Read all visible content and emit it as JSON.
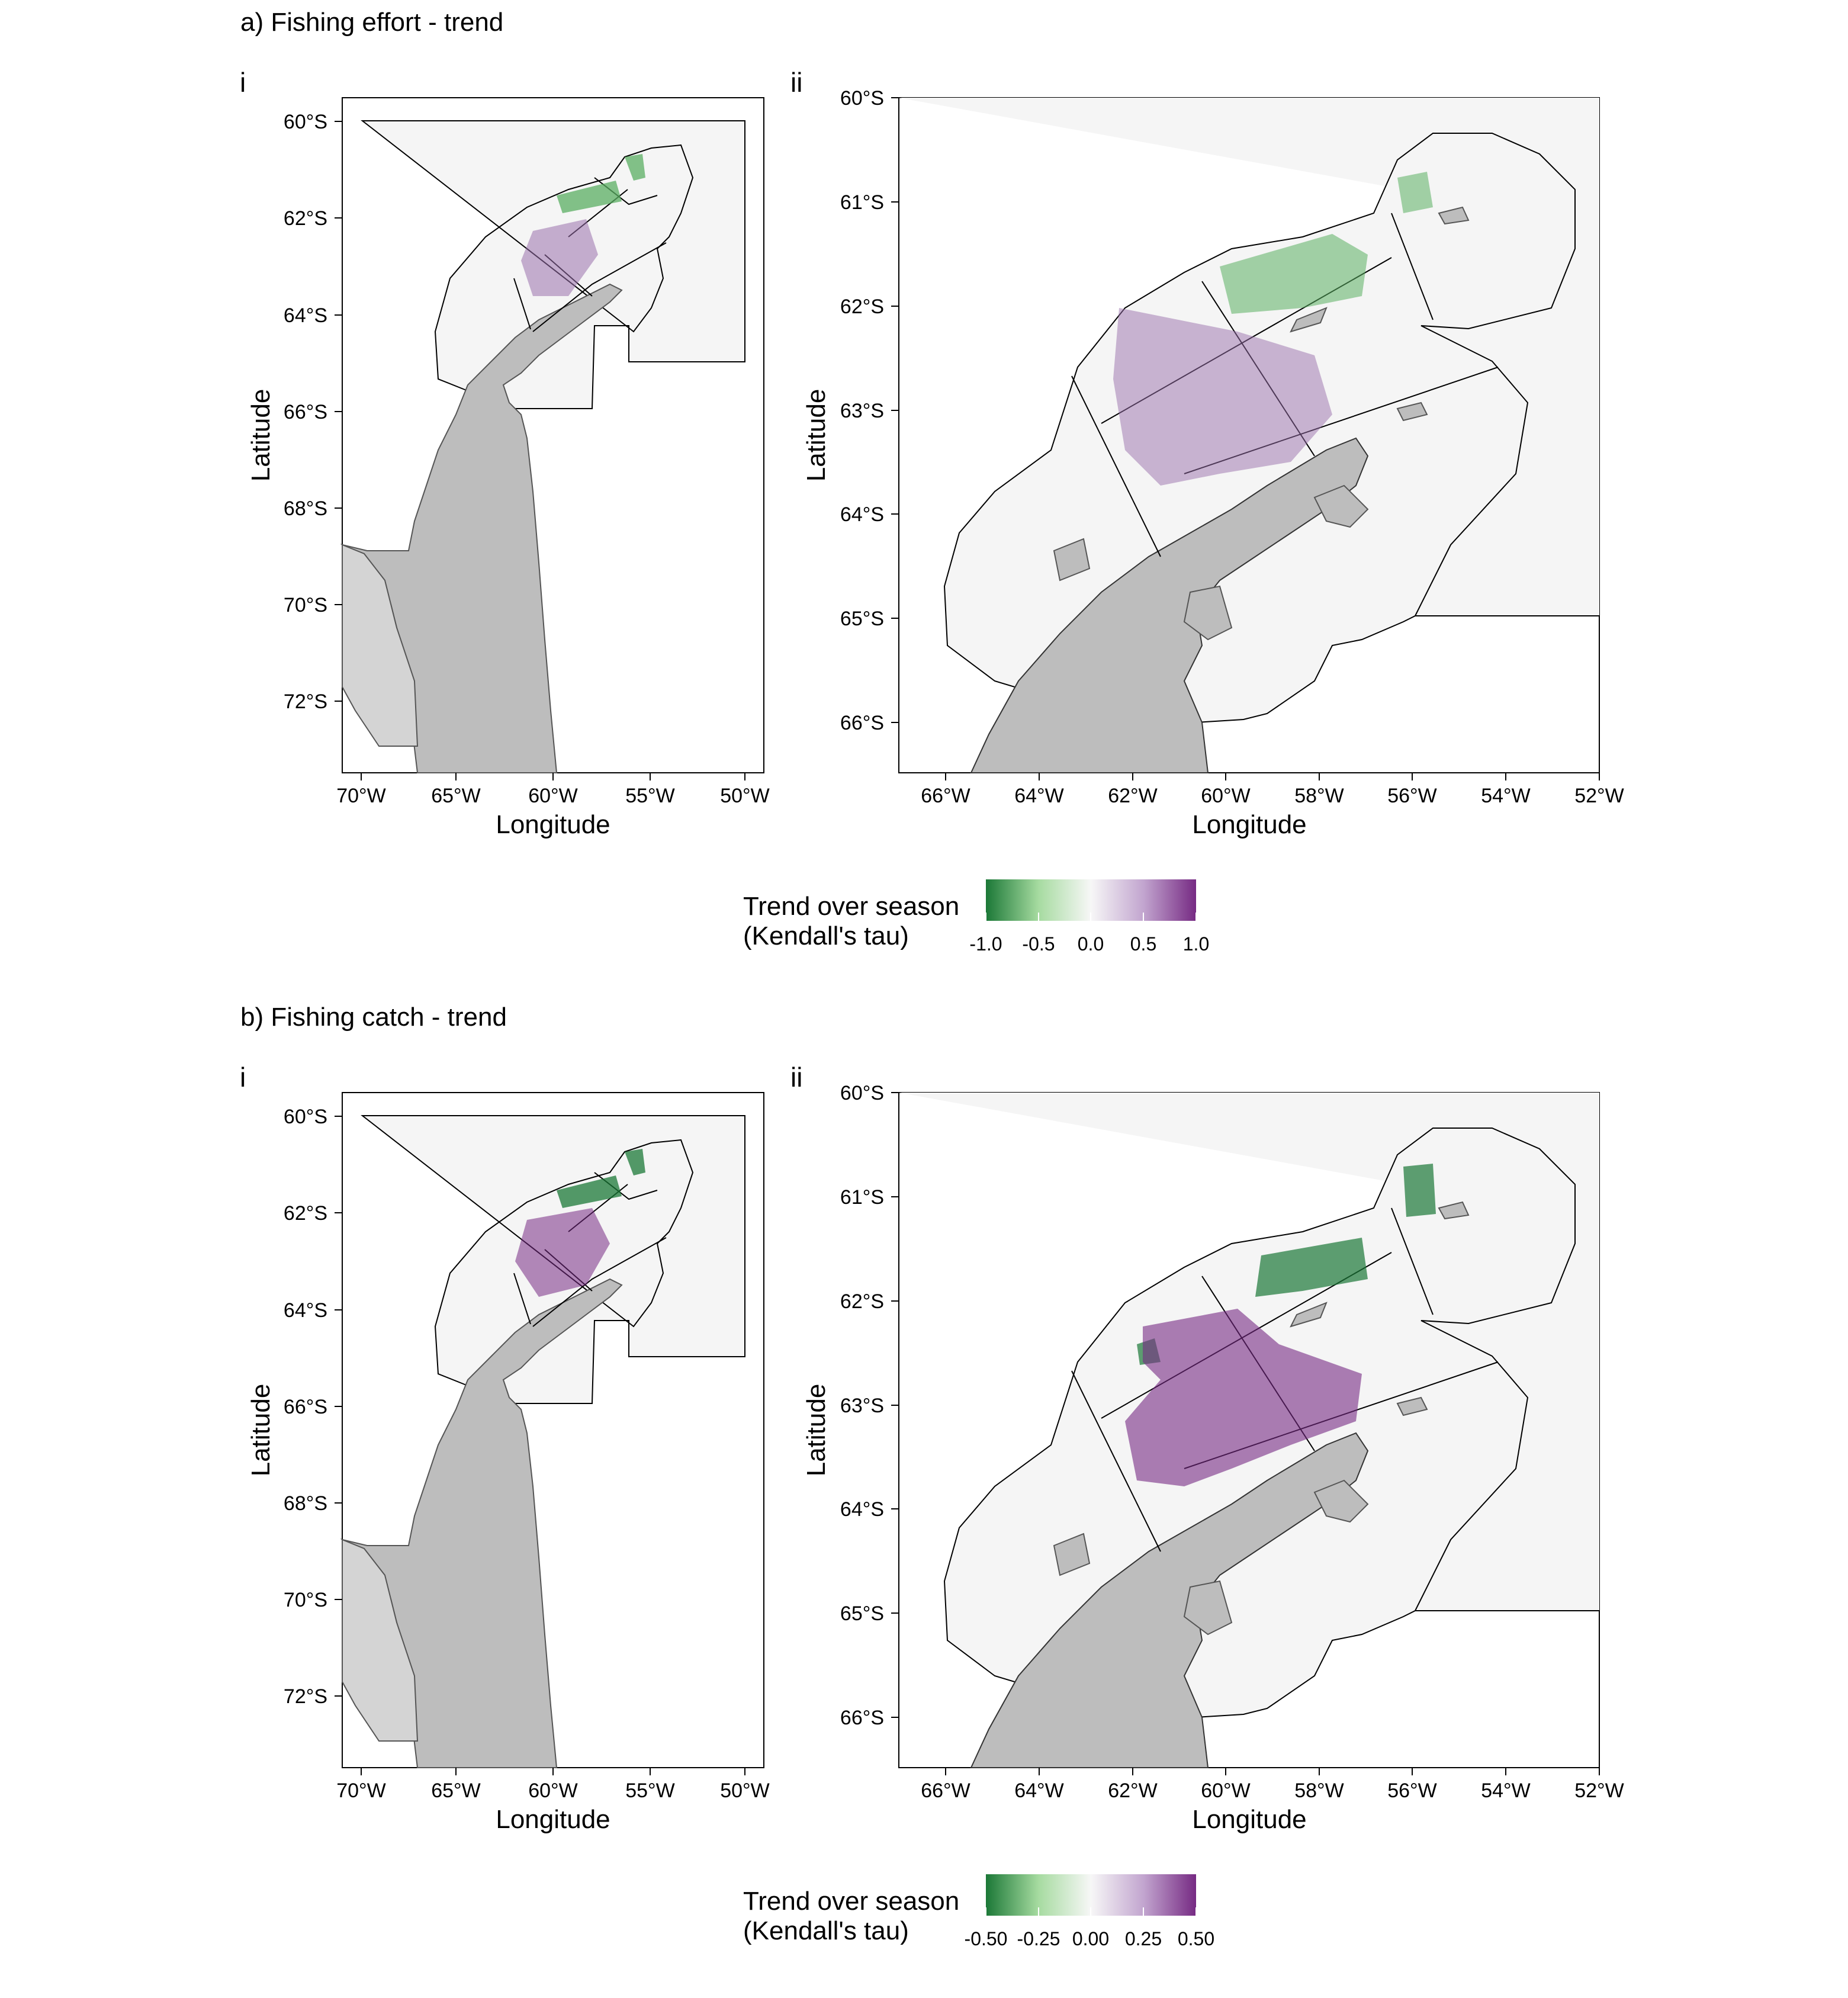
{
  "figure": {
    "panels": [
      {
        "id": "a",
        "title": "a) Fishing effort - trend",
        "legend": {
          "title_line1": "Trend over season",
          "title_line2": "(Kendall's tau)",
          "ticks": [
            "-1.0",
            "-0.5",
            "0.0",
            "0.5",
            "1.0"
          ],
          "range": [
            -1.0,
            1.0
          ]
        },
        "maps": [
          {
            "label": "i",
            "ylabel": "Latitude",
            "xlabel": "Longitude",
            "xlim": [
              -72,
              -49
            ],
            "ylim": [
              -73.5,
              -59.5
            ],
            "xticks": [
              "70°W",
              "65°W",
              "60°W",
              "55°W",
              "50°W"
            ],
            "yticks": [
              "60°S",
              "62°S",
              "64°S",
              "66°S",
              "68°S",
              "70°S",
              "72°S"
            ]
          },
          {
            "label": "ii",
            "ylabel": "Latitude",
            "xlabel": "Longitude",
            "xlim": [
              -67,
              -52
            ],
            "ylim": [
              -66.5,
              -60
            ],
            "xticks": [
              "66°W",
              "64°W",
              "62°W",
              "60°W",
              "58°W",
              "56°W",
              "54°W",
              "52°W"
            ],
            "yticks": [
              "60°S",
              "61°S",
              "62°S",
              "63°S",
              "64°S",
              "65°S",
              "66°S"
            ]
          }
        ]
      },
      {
        "id": "b",
        "title": "b) Fishing catch - trend",
        "legend": {
          "title_line1": "Trend over season",
          "title_line2": "(Kendall's tau)",
          "ticks": [
            "-0.50",
            "-0.25",
            "0.00",
            "0.25",
            "0.50"
          ],
          "range": [
            -0.5,
            0.5
          ]
        },
        "maps": [
          {
            "label": "i",
            "ylabel": "Latitude",
            "xlabel": "Longitude",
            "xlim": [
              -72,
              -49
            ],
            "ylim": [
              -73.5,
              -59.5
            ],
            "xticks": [
              "70°W",
              "65°W",
              "60°W",
              "55°W",
              "50°W"
            ],
            "yticks": [
              "60°S",
              "62°S",
              "64°S",
              "66°S",
              "68°S",
              "70°S",
              "72°S"
            ]
          },
          {
            "label": "ii",
            "ylabel": "Latitude",
            "xlabel": "Longitude",
            "xlim": [
              -67,
              -52
            ],
            "ylim": [
              -66.5,
              -60
            ],
            "xticks": [
              "66°W",
              "64°W",
              "62°W",
              "60°W",
              "58°W",
              "56°W",
              "54°W",
              "52°W"
            ],
            "yticks": [
              "60°S",
              "61°S",
              "62°S",
              "63°S",
              "64°S",
              "65°S",
              "66°S"
            ]
          }
        ]
      }
    ],
    "colors": {
      "negative": "#1b7837",
      "neutral": "#f7f7f7",
      "positive": "#762a83",
      "land": "#bdbdbd",
      "ice_shelf": "#d0d0d0",
      "study_area_fill": "#f5f5f5",
      "outline": "#000000"
    }
  }
}
